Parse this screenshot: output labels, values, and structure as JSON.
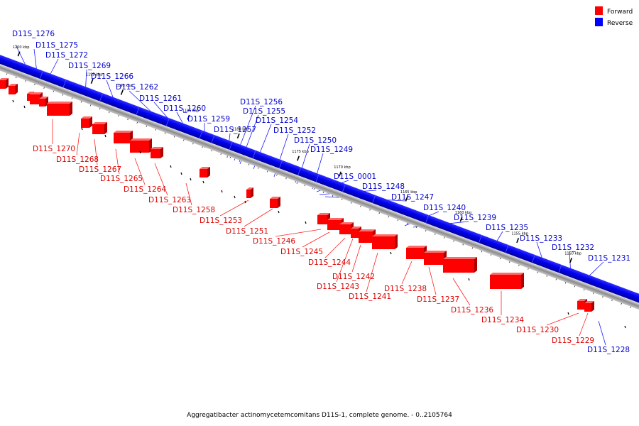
{
  "legend": [
    {
      "label": "Forward",
      "color": "#ff0000"
    },
    {
      "label": "Reverse",
      "color": "#0000ff"
    }
  ],
  "caption": "Aggregatibacter actinomycetemcomitans D11S-1, complete genome. - 0..2105764",
  "colors": {
    "forward": "#ff0000",
    "reverse": "#0000ff",
    "backbone": "#808080"
  },
  "ticks": [
    "1200 kbp",
    "1195 kbp",
    "1190 kbp",
    "1185 kbp",
    "1180 kbp",
    "1175 kbp",
    "1170 kbp",
    "1165 kbp",
    "1160 kbp",
    "1155 kbp",
    "1150 kbp"
  ],
  "reverse_labels": [
    "D11S_1276",
    "D11S_1275",
    "D11S_1272",
    "D11S_1269",
    "D11S_1266",
    "D11S_1262",
    "D11S_1261",
    "D11S_1260",
    "D11S_1259",
    "D11S_1257",
    "D11S_1256",
    "D11S_1255",
    "D11S_1254",
    "D11S_1252",
    "D11S_1250",
    "D11S_1249",
    "D11S_0001",
    "D11S_1248",
    "D11S_1247",
    "D11S_1240",
    "D11S_1239",
    "D11S_1235",
    "D11S_1233",
    "D11S_1232",
    "D11S_1231",
    "D11S_1228"
  ],
  "forward_labels": [
    "D11S_1270",
    "D11S_1268",
    "D11S_1267",
    "D11S_1265",
    "D11S_1264",
    "D11S_1263",
    "D11S_1258",
    "D11S_1253",
    "D11S_1251",
    "D11S_1246",
    "D11S_1245",
    "D11S_1244",
    "D11S_1242",
    "D11S_1243",
    "D11S_1241",
    "D11S_1238",
    "D11S_1237",
    "D11S_1236",
    "D11S_1234",
    "D11S_1230",
    "D11S_1229"
  ]
}
